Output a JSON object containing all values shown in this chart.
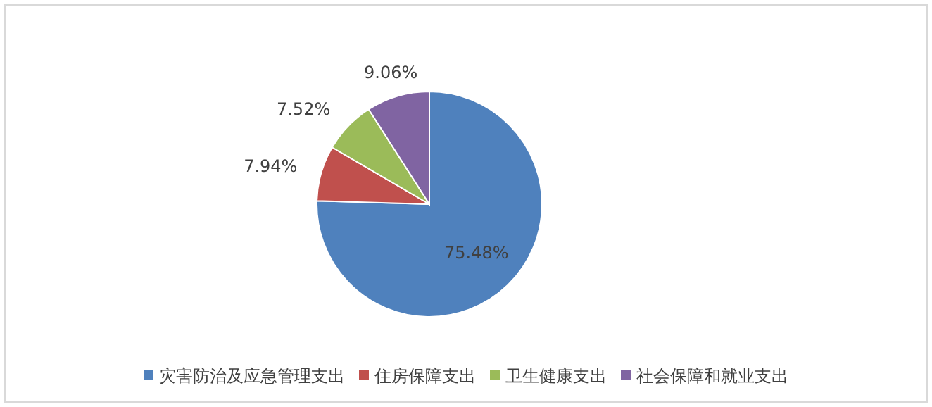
{
  "chart_data": {
    "type": "pie",
    "categories": [
      "灾害防治及应急管理支出",
      "住房保障支出",
      "卫生健康支出",
      "社会保障和就业支出"
    ],
    "values": [
      75.48,
      7.94,
      7.52,
      9.06
    ],
    "colors": [
      "#4f81bd",
      "#c0504d",
      "#9bbb59",
      "#8064a2"
    ],
    "value_labels": [
      "75.48%",
      "7.94%",
      "7.52%",
      "9.06%"
    ],
    "legend": "bottom"
  }
}
